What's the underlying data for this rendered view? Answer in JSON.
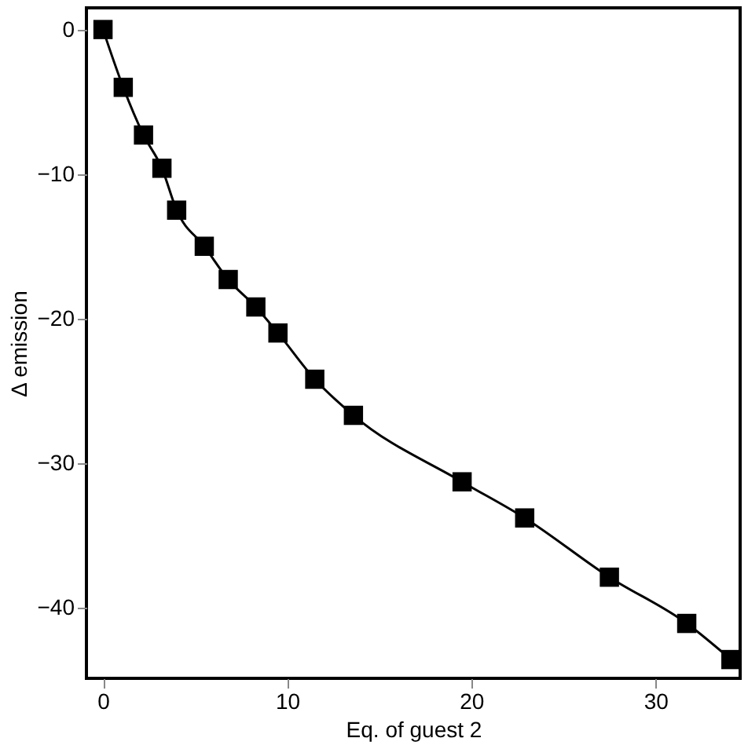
{
  "chart_data": {
    "type": "line",
    "xlabel": "Eq. of guest 2",
    "ylabel": "Δ emission",
    "x": [
      0,
      1.1,
      2.2,
      3.2,
      4.0,
      5.5,
      6.8,
      8.3,
      9.5,
      11.5,
      13.6,
      19.5,
      22.9,
      27.5,
      31.7,
      34.1
    ],
    "series": [
      {
        "color": "#000000",
        "values": [
          0,
          -4.0,
          -7.3,
          -9.6,
          -12.5,
          -15.0,
          -17.3,
          -19.2,
          -21.0,
          -24.2,
          -26.7,
          -31.3,
          -33.8,
          -37.9,
          -41.1,
          -43.6
        ]
      }
    ],
    "xlim": [
      -0.9,
      34.6
    ],
    "ylim": [
      -44.9,
      1.5
    ],
    "xticks": [
      0,
      10,
      20,
      30
    ],
    "yticks": [
      0,
      -10,
      -20,
      -30,
      -40
    ],
    "marker": "square",
    "line_style": "solid",
    "grid": false,
    "legend": false
  }
}
